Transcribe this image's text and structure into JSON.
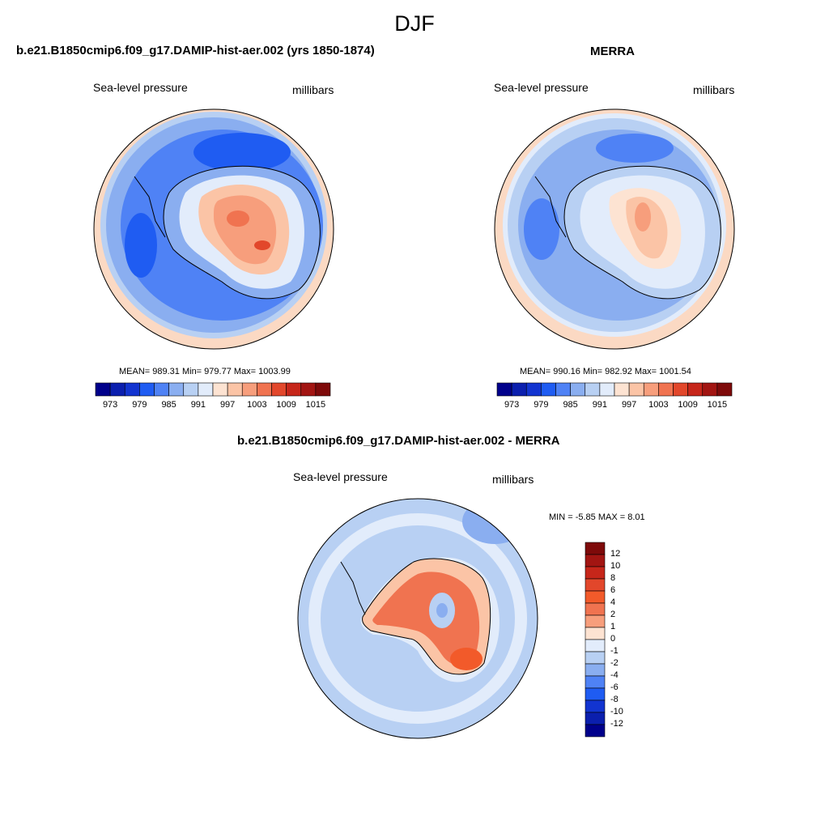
{
  "figure": {
    "season": "DJF"
  },
  "panels": [
    {
      "title": "b.e21.B1850cmip6.f09_g17.DAMIP-hist-aer.002 (yrs 1850-1874)",
      "left_label": "Sea-level pressure",
      "right_label": "millibars",
      "stats": "MEAN= 989.31  Min= 979.77  Max= 1003.99",
      "mean": 989.31,
      "min": 979.77,
      "max": 1003.99
    },
    {
      "title": "MERRA",
      "left_label": "Sea-level pressure",
      "right_label": "millibars",
      "stats": "MEAN= 990.16  Min= 982.92  Max= 1001.54",
      "mean": 990.16,
      "min": 982.92,
      "max": 1001.54
    },
    {
      "title": "b.e21.B1850cmip6.f09_g17.DAMIP-hist-aer.002 - MERRA",
      "left_label": "Sea-level pressure",
      "right_label": "millibars",
      "stats": "MIN =  -5.85 MAX =   8.01",
      "min": -5.85,
      "max": 8.01
    }
  ],
  "colorbar_abs": {
    "levels": [
      973,
      976,
      979,
      982,
      985,
      988,
      991,
      994,
      997,
      1000,
      1003,
      1006,
      1009,
      1012,
      1015
    ],
    "tick_labels": [
      "973",
      "979",
      "985",
      "991",
      "997",
      "1003",
      "1009",
      "1015"
    ],
    "colors": [
      "#00008b",
      "#0b1fae",
      "#1234d0",
      "#1f5cf2",
      "#4f82f5",
      "#8aaef0",
      "#b8d0f3",
      "#e2ecfb",
      "#fde3d2",
      "#fbc4a6",
      "#f79e7c",
      "#f07350",
      "#e2472b",
      "#c6261a",
      "#a21512",
      "#7e0a0a"
    ]
  },
  "colorbar_diff": {
    "levels": [
      -12,
      -10,
      -8,
      -6,
      -4,
      -2,
      -1,
      0,
      1,
      2,
      4,
      6,
      8,
      10,
      12
    ],
    "tick_labels": [
      "12",
      "10",
      "8",
      "6",
      "4",
      "2",
      "1",
      "0",
      "-1",
      "-2",
      "-4",
      "-6",
      "-8",
      "-10",
      "-12"
    ],
    "colors": [
      "#7e0a0a",
      "#a21512",
      "#c6261a",
      "#e2472b",
      "#f25a2a",
      "#f07350",
      "#f79e7c",
      "#fde3d2",
      "#e2ecfb",
      "#b8d0f3",
      "#8aaef0",
      "#4f82f5",
      "#1f5cf2",
      "#1234d0",
      "#0b1fae",
      "#00008b"
    ]
  }
}
